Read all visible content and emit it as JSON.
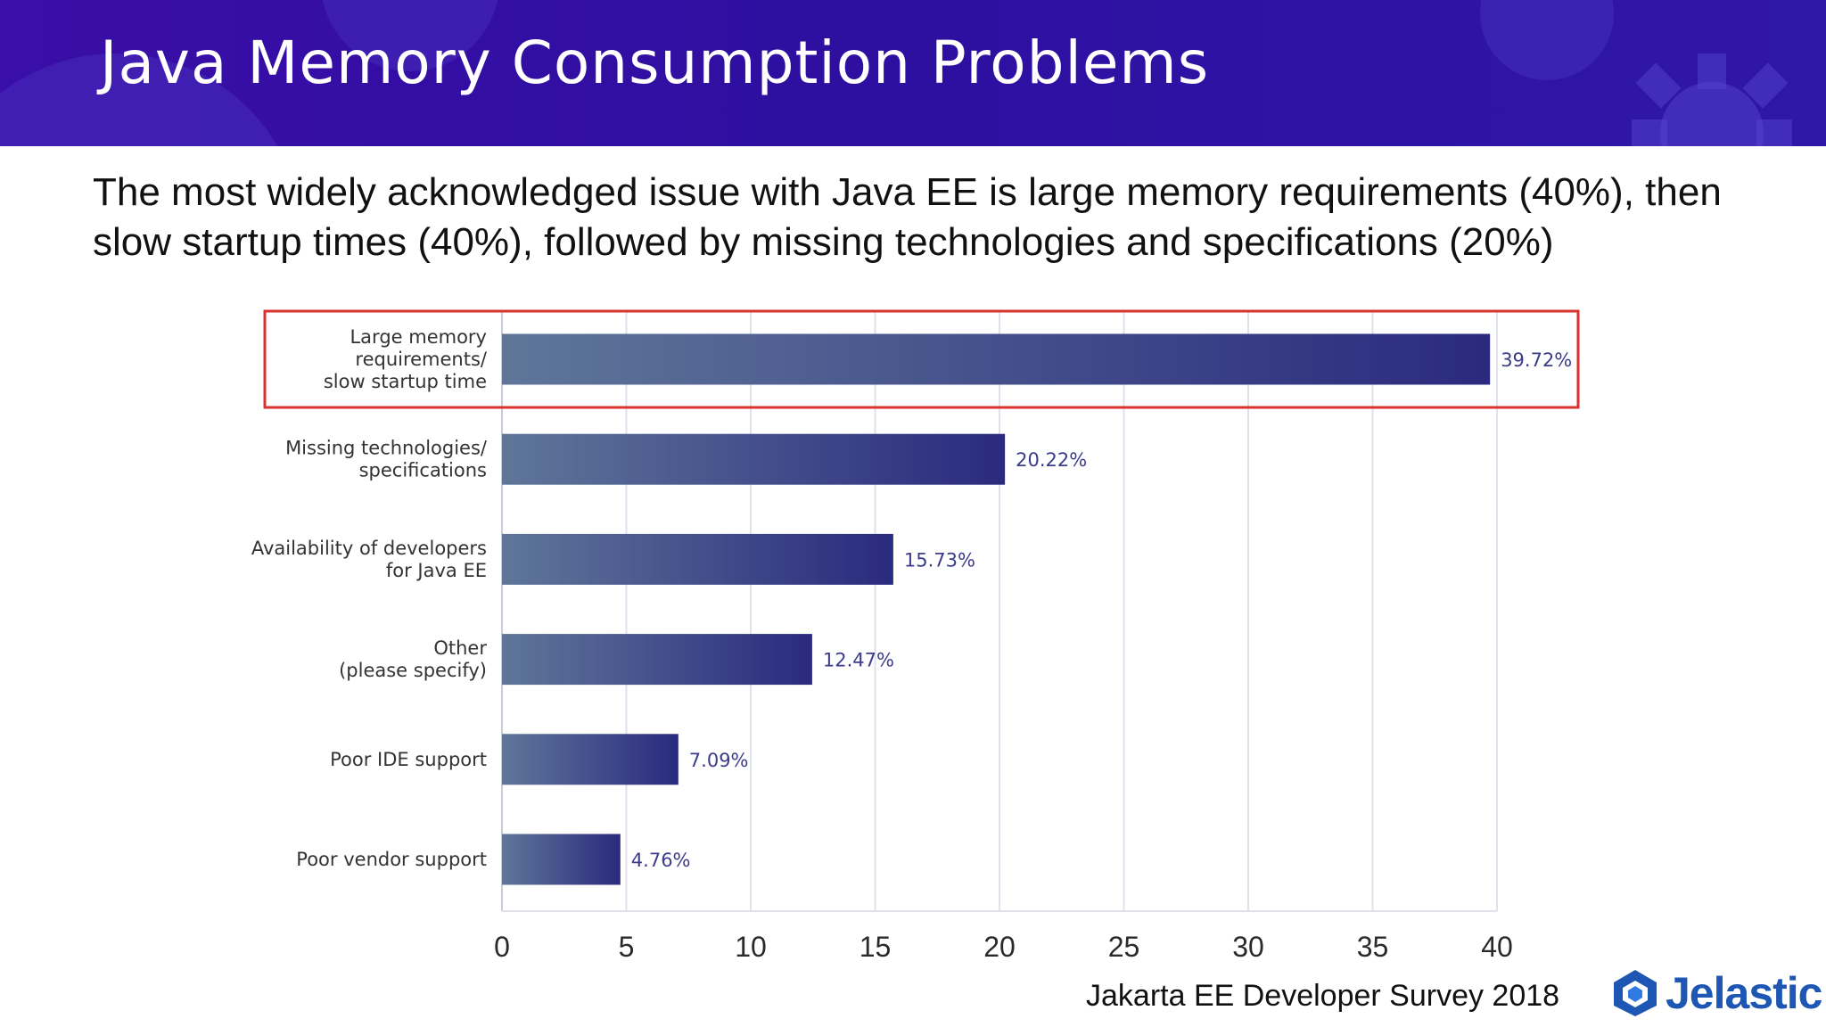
{
  "slide": {
    "title": "Java Memory Consumption Problems",
    "subtitle": "The most widely acknowledged issue with Java EE is large memory requirements (40%), then slow startup times (40%), followed by missing technologies and specifications (20%)",
    "source": "Jakarta EE Developer Survey 2018",
    "logo_text": "Jelastic"
  },
  "colors": {
    "header": "#3a0ea8",
    "bar_light": "#5f7699",
    "bar_dark": "#2a2a7e",
    "highlight": "#d9322e",
    "grid": "#dfe2ec",
    "value_label": "#3c3c8a",
    "logo": "#1e56b3"
  },
  "chart_data": {
    "type": "bar",
    "orientation": "horizontal",
    "title": "",
    "xlabel": "",
    "ylabel": "",
    "xlim": [
      0,
      40
    ],
    "xticks": [
      0,
      5,
      10,
      15,
      20,
      25,
      30,
      35,
      40
    ],
    "grid": true,
    "categories": [
      [
        "Large memory",
        "requirements/",
        "slow startup time"
      ],
      [
        "Missing technologies/",
        "specifications"
      ],
      [
        "Availability of developers",
        "for Java EE"
      ],
      [
        "Other",
        "(please specify)"
      ],
      [
        "Poor IDE support"
      ],
      [
        "Poor vendor support"
      ]
    ],
    "values": [
      39.72,
      20.22,
      15.73,
      12.47,
      7.09,
      4.76
    ],
    "value_labels": [
      "39.72%",
      "20.22%",
      "15.73%",
      "12.47%",
      "7.09%",
      "4.76%"
    ],
    "highlighted_index": 0
  }
}
